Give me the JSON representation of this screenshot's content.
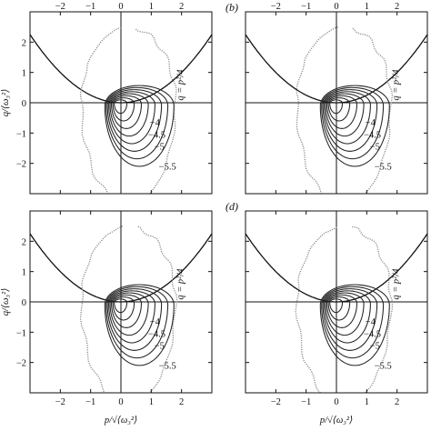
{
  "chart_data": [
    {
      "type": "line",
      "panel_label": "",
      "xlabel": "p/√⟨ω₃²⟩",
      "ylabel": "q/⟨ω₃²⟩",
      "xlim": [
        -3,
        3
      ],
      "ylim": [
        -3,
        3
      ],
      "xticks": [
        "−2",
        "−1",
        "0",
        "1",
        "2"
      ],
      "yticks": [
        "2",
        "1",
        "0",
        "−1",
        "−2"
      ],
      "curve_label": "q = p²/4",
      "contour_levels": [
        "−4",
        "−4.5",
        "−5",
        "−5.5"
      ]
    },
    {
      "type": "line",
      "panel_label": "(b)",
      "xlabel": "p/√⟨ω₃²⟩",
      "ylabel": "q/⟨ω₃²⟩",
      "xlim": [
        -3,
        3
      ],
      "ylim": [
        -3,
        3
      ],
      "xticks": [
        "−2",
        "−1",
        "0",
        "1",
        "2"
      ],
      "yticks": [
        "2",
        "1",
        "0",
        "−1",
        "−2"
      ],
      "curve_label": "q = p²/4",
      "contour_levels": [
        "−4",
        "−4.5",
        "−5",
        "−5.5"
      ]
    },
    {
      "type": "line",
      "panel_label": "",
      "xlabel": "p/√⟨ω₃²⟩",
      "ylabel": "q/⟨ω₃²⟩",
      "xlim": [
        -3,
        3
      ],
      "ylim": [
        -3,
        3
      ],
      "xticks": [
        "−2",
        "−1",
        "0",
        "1",
        "2"
      ],
      "yticks": [
        "2",
        "1",
        "0",
        "−1",
        "−2"
      ],
      "curve_label": "q = p²/4",
      "contour_levels": [
        "−4",
        "−4.5",
        "−5",
        "−5.5"
      ]
    },
    {
      "type": "line",
      "panel_label": "(d)",
      "xlabel": "p/√⟨ω₃²⟩",
      "ylabel": "q/⟨ω₃²⟩",
      "xlim": [
        -3,
        3
      ],
      "ylim": [
        -3,
        3
      ],
      "xticks": [
        "−2",
        "−1",
        "0",
        "1",
        "2"
      ],
      "yticks": [
        "2",
        "1",
        "0",
        "−1",
        "−2"
      ],
      "curve_label": "q = p²/4",
      "contour_levels": [
        "−4",
        "−4.5",
        "−5",
        "−5.5"
      ]
    }
  ]
}
